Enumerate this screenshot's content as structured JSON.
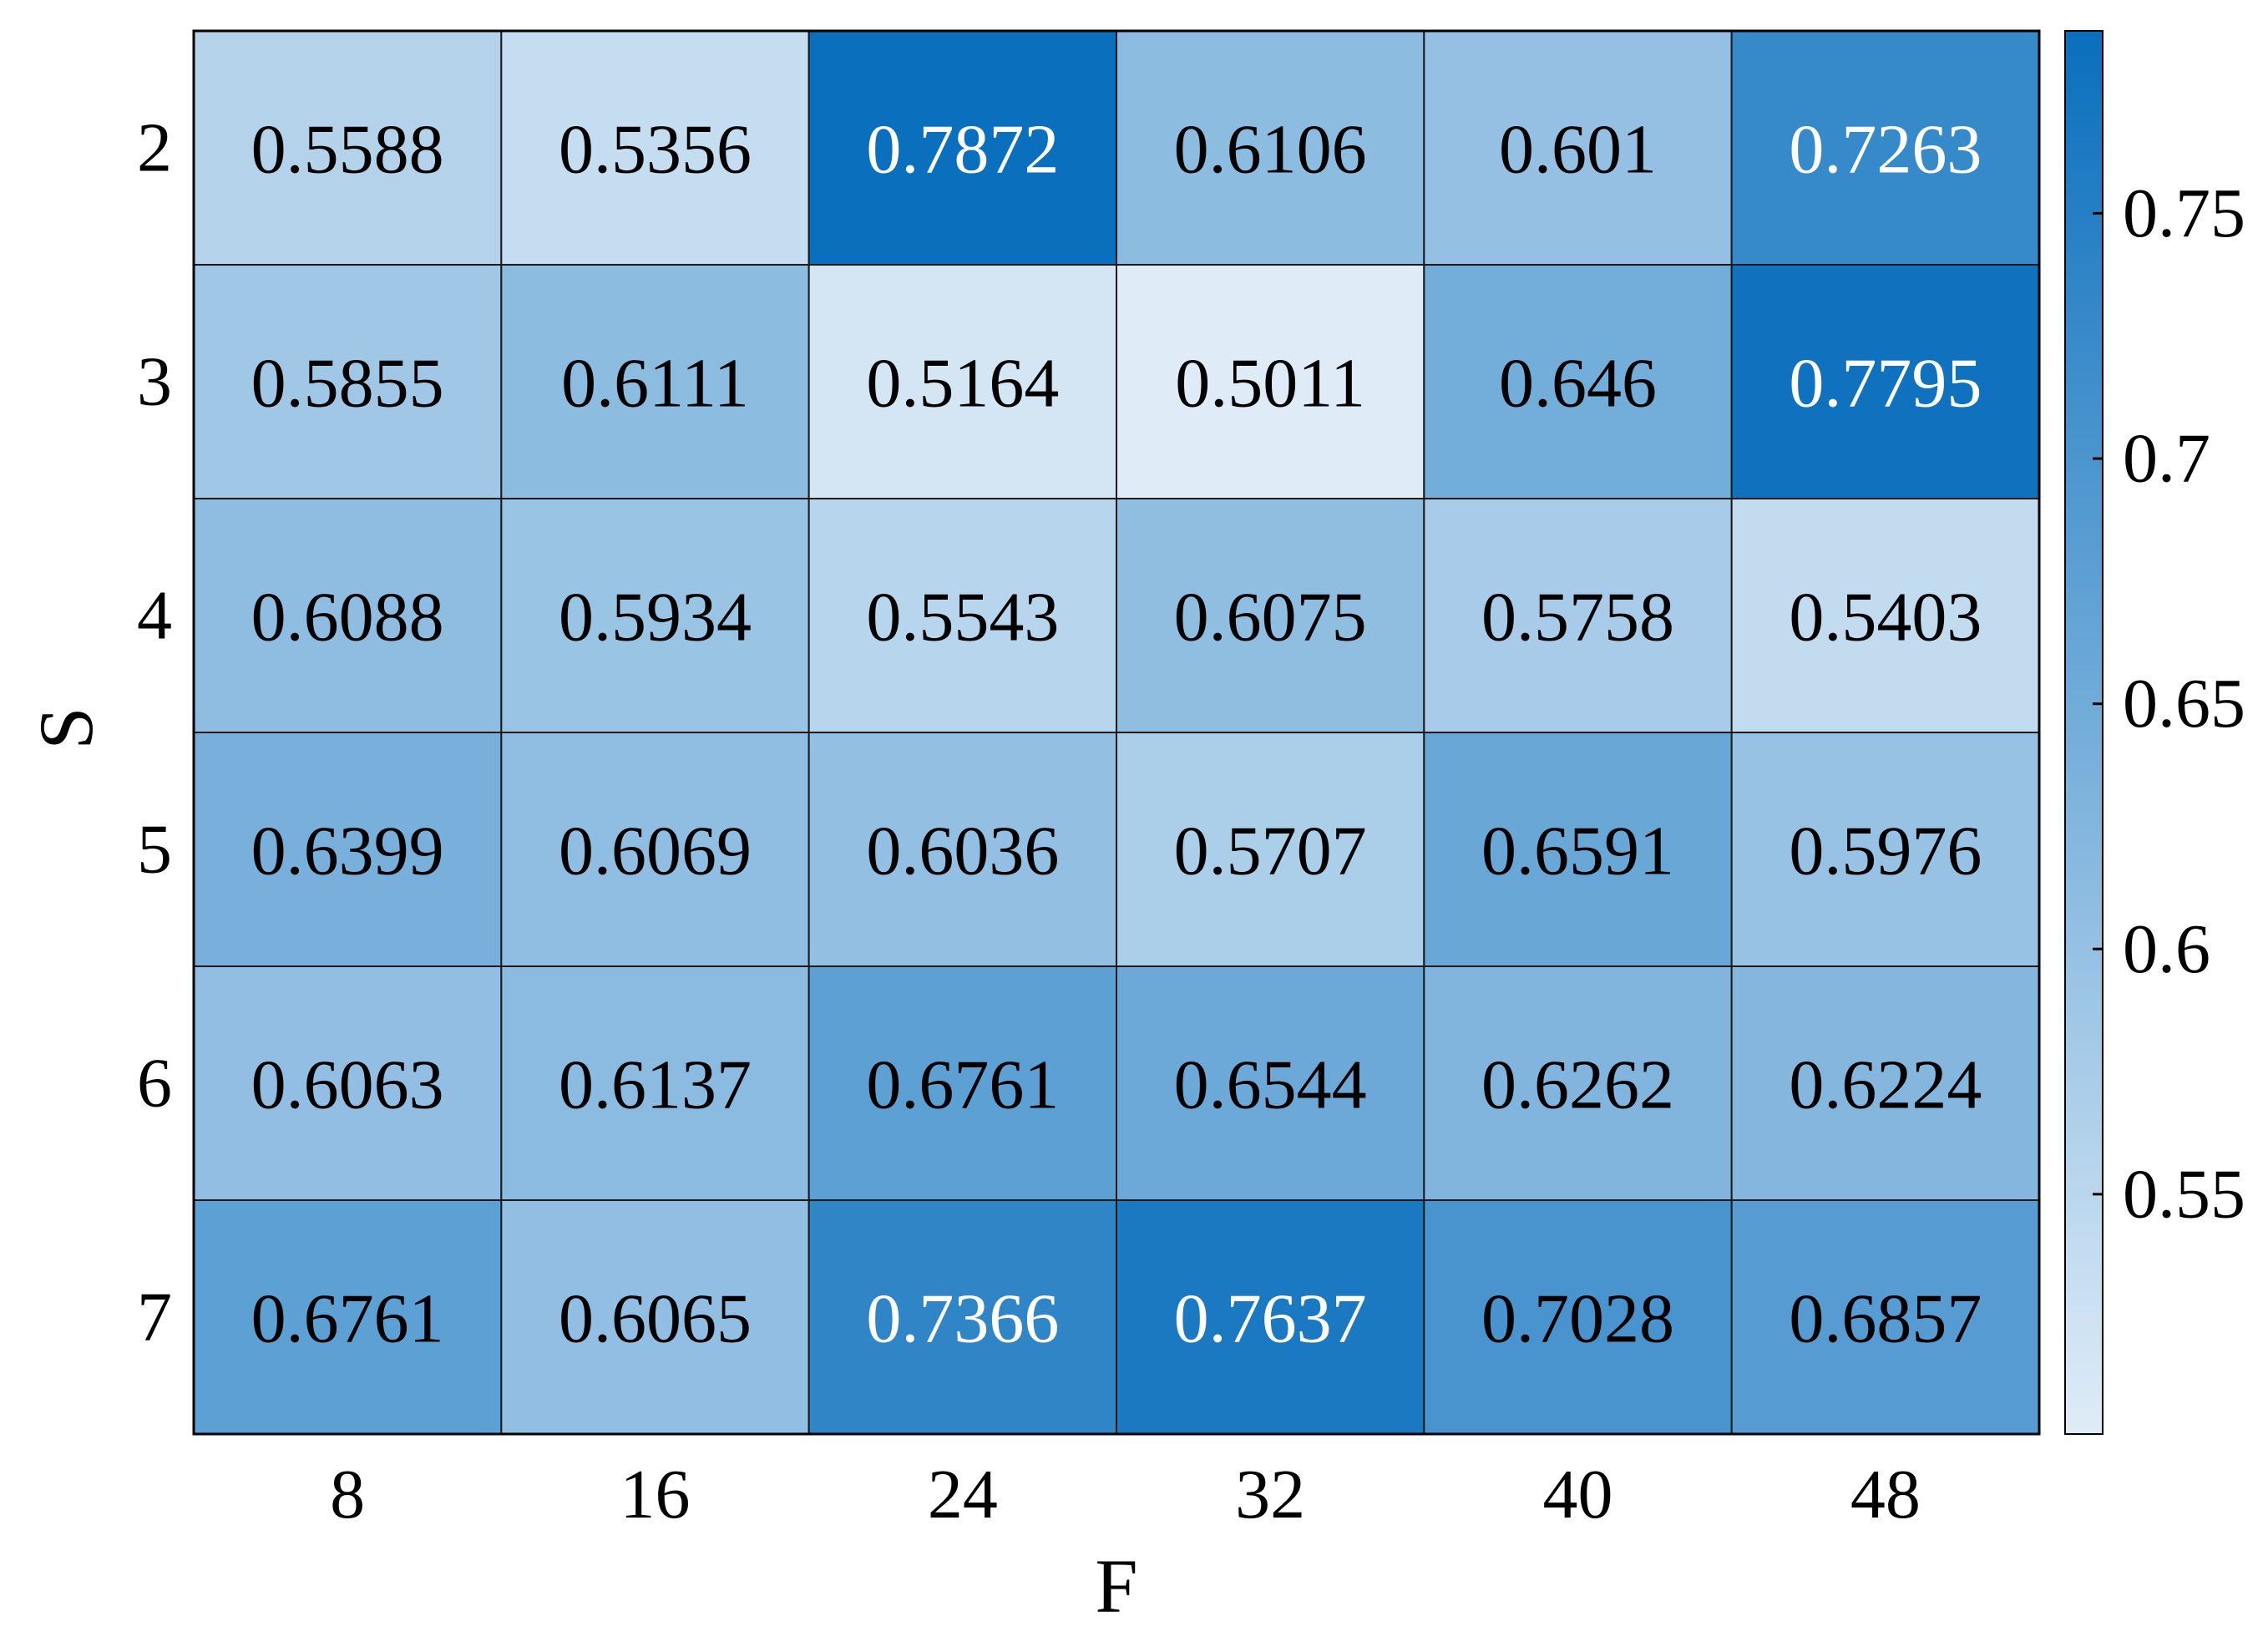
{
  "chart_data": {
    "type": "heatmap",
    "title": "",
    "xlabel": "F",
    "ylabel": "S",
    "x_categories": [
      "8",
      "16",
      "24",
      "32",
      "40",
      "48"
    ],
    "y_categories": [
      "2",
      "3",
      "4",
      "5",
      "6",
      "7"
    ],
    "values": [
      [
        "0.5588",
        "0.5356",
        "0.7872",
        "0.6106",
        "0.601",
        "0.7263"
      ],
      [
        "0.5855",
        "0.6111",
        "0.5164",
        "0.5011",
        "0.646",
        "0.7795"
      ],
      [
        "0.6088",
        "0.5934",
        "0.5543",
        "0.6075",
        "0.5758",
        "0.5403"
      ],
      [
        "0.6399",
        "0.6069",
        "0.6036",
        "0.5707",
        "0.6591",
        "0.5976"
      ],
      [
        "0.6063",
        "0.6137",
        "0.6761",
        "0.6544",
        "0.6262",
        "0.6224"
      ],
      [
        "0.6761",
        "0.6065",
        "0.7366",
        "0.7637",
        "0.7028",
        "0.6857"
      ]
    ],
    "colorbar": {
      "range": [
        0.5011,
        0.7872
      ],
      "ticks": [
        "0.55",
        "0.6",
        "0.65",
        "0.7",
        "0.75"
      ],
      "low_color": "#dfecf7",
      "high_color": "#0a6fbd"
    },
    "grid": false,
    "legend": "colorbar-right"
  }
}
